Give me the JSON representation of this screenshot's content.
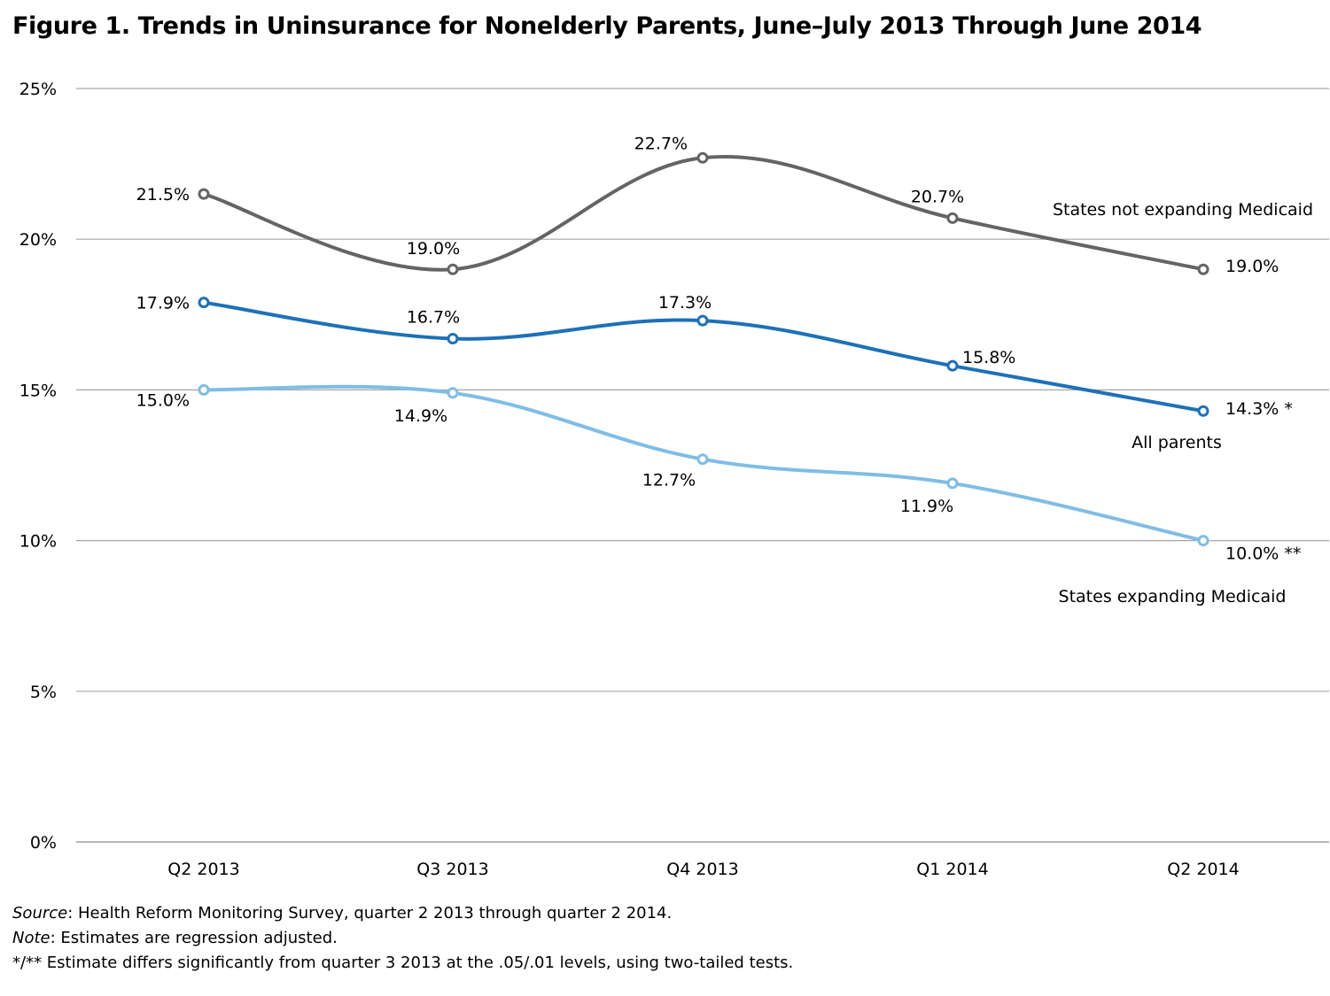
{
  "chart_data": {
    "type": "line",
    "title": "Figure 1. Trends in Uninsurance for Nonelderly Parents, June–July 2013 Through June 2014",
    "categories": [
      "Q2 2013",
      "Q3 2013",
      "Q4 2013",
      "Q1 2014",
      "Q2 2014"
    ],
    "ylim": [
      0,
      25
    ],
    "y_ticks": [
      0,
      5,
      10,
      15,
      20,
      25
    ],
    "y_tick_labels": [
      "0%",
      "5%",
      "10%",
      "15%",
      "20%",
      "25%"
    ],
    "grid": "horizontal",
    "series": [
      {
        "name": "States not expanding Medicaid",
        "color": "#646464",
        "values": [
          21.5,
          19.0,
          22.7,
          20.7,
          19.0
        ],
        "labels": [
          "21.5%",
          "19.0%",
          "22.7%",
          "20.7%",
          "19.0%"
        ]
      },
      {
        "name": "All parents",
        "color": "#1d71b8",
        "values": [
          17.9,
          16.7,
          17.3,
          15.8,
          14.3
        ],
        "labels": [
          "17.9%",
          "16.7%",
          "17.3%",
          "15.8%",
          "14.3% *"
        ]
      },
      {
        "name": "States expanding Medicaid",
        "color": "#7fbde6",
        "values": [
          15.0,
          14.9,
          12.7,
          11.9,
          10.0
        ],
        "labels": [
          "15.0%",
          "14.9%",
          "12.7%",
          "11.9%",
          "10.0% **"
        ]
      }
    ]
  },
  "notes": {
    "source_label": "Source",
    "source_text": ": Health Reform Monitoring Survey, quarter 2 2013 through quarter 2 2014.",
    "note_label": "Note",
    "note_text": ":  Estimates are regression adjusted.",
    "significance": "*/** Estimate differs significantly from quarter 3 2013 at the .05/.01 levels, using two-tailed tests."
  }
}
